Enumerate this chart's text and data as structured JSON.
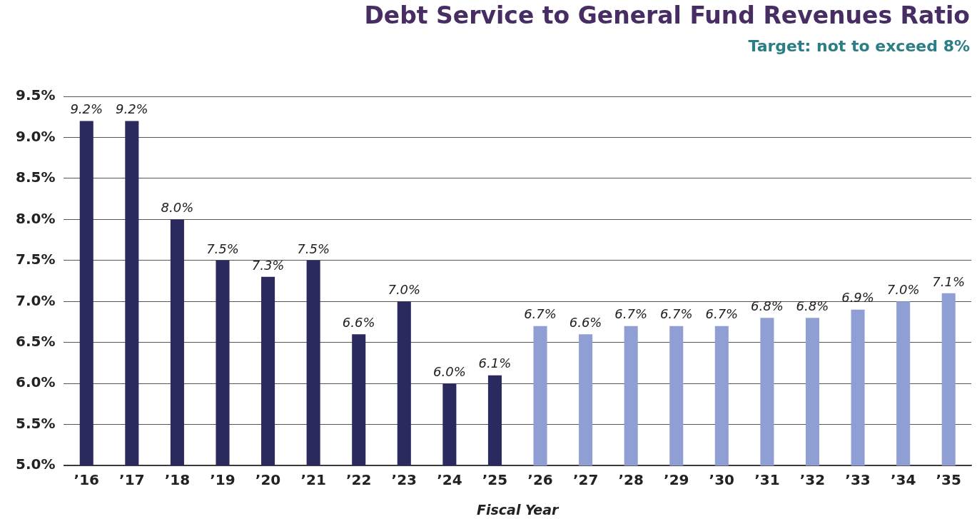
{
  "chart_data": {
    "type": "bar",
    "title": "Debt Service to General Fund Revenues Ratio",
    "subtitle": "Target: not to exceed 8%",
    "xlabel": "Fiscal Year",
    "categories": [
      "’16",
      "’17",
      "’18",
      "’19",
      "’20",
      "’21",
      "’22",
      "’23",
      "’24",
      "’25",
      "’26",
      "’27",
      "’28",
      "’29",
      "’30",
      "’31",
      "’32",
      "’33",
      "’34",
      "’35"
    ],
    "values": [
      9.2,
      9.2,
      8.0,
      7.5,
      7.3,
      7.5,
      6.6,
      7.0,
      6.0,
      6.1,
      6.7,
      6.6,
      6.7,
      6.7,
      6.7,
      6.8,
      6.8,
      6.9,
      7.0,
      7.1
    ],
    "colors": [
      "#2b2a5e",
      "#2b2a5e",
      "#2b2a5e",
      "#2b2a5e",
      "#2b2a5e",
      "#2b2a5e",
      "#2b2a5e",
      "#2b2a5e",
      "#2b2a5e",
      "#2b2a5e",
      "#8f9fd4",
      "#8f9fd4",
      "#8f9fd4",
      "#8f9fd4",
      "#8f9fd4",
      "#8f9fd4",
      "#8f9fd4",
      "#8f9fd4",
      "#8f9fd4",
      "#8f9fd4"
    ],
    "value_labels": [
      "9.2%",
      "9.2%",
      "8.0%",
      "7.5%",
      "7.3%",
      "7.5%",
      "6.6%",
      "7.0%",
      "6.0%",
      "6.1%",
      "6.7%",
      "6.6%",
      "6.7%",
      "6.7%",
      "6.7%",
      "6.8%",
      "6.8%",
      "6.9%",
      "7.0%",
      "7.1%"
    ],
    "ylim": [
      5.0,
      9.5
    ],
    "yticks": [
      {
        "value": 5.0,
        "label": "5.0%"
      },
      {
        "value": 5.5,
        "label": "5.5%"
      },
      {
        "value": 6.0,
        "label": "6.0%"
      },
      {
        "value": 6.5,
        "label": "6.5%"
      },
      {
        "value": 7.0,
        "label": "7.0%"
      },
      {
        "value": 7.5,
        "label": "7.5%"
      },
      {
        "value": 8.0,
        "label": "8.0%"
      },
      {
        "value": 8.5,
        "label": "8.5%"
      },
      {
        "value": 9.0,
        "label": "9.0%"
      },
      {
        "value": 9.5,
        "label": "9.5%"
      }
    ],
    "grid": "y",
    "legend": false
  }
}
